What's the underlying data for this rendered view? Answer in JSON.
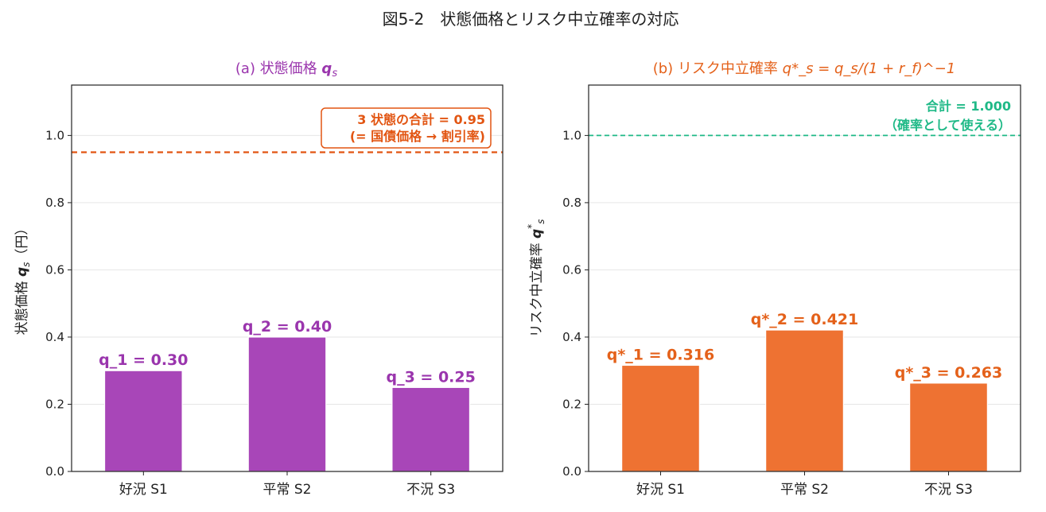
{
  "figure_title": "図5-2　状態価格とリスク中立確率の対応",
  "colors": {
    "purple": "#a846b8",
    "purple_text": "#9a35ad",
    "orange": "#ee7232",
    "orange_text": "#e4611a",
    "ref_orange": "#e25512",
    "green": "#1fb987"
  },
  "chart_data": [
    {
      "type": "bar",
      "title_prefix": "(a) 状態価格",
      "title_math": "q",
      "title_math_sub": "s",
      "ylabel_prefix": "状態価格",
      "ylabel_math": "q",
      "ylabel_math_sub": "s",
      "ylabel_suffix": "（円）",
      "categories": [
        "好況 S1",
        "平常 S2",
        "不況 S3"
      ],
      "values": [
        0.3,
        0.4,
        0.25
      ],
      "data_labels": [
        "q_1 = 0.30",
        "q_2 = 0.40",
        "q_3 = 0.25"
      ],
      "ylim": [
        0,
        1.15
      ],
      "yticks": [
        "0.0",
        "0.2",
        "0.4",
        "0.6",
        "0.8",
        "1.0"
      ],
      "grid": true,
      "reference_line": {
        "value": 0.95,
        "style": "dashed",
        "annotation": [
          "3 状態の合計 = 0.95",
          "(= 国債価格 → 割引率)"
        ]
      }
    },
    {
      "type": "bar",
      "title_prefix": "(b) リスク中立確率",
      "title_formula": "q*_s = q_s/(1 + r_f)^−1",
      "ylabel_prefix": "リスク中立確率",
      "ylabel_math": "q",
      "ylabel_math_sup": "*",
      "ylabel_math_sub": "s",
      "categories": [
        "好況 S1",
        "平常 S2",
        "不況 S3"
      ],
      "values": [
        0.316,
        0.421,
        0.263
      ],
      "data_labels": [
        "q*_1 = 0.316",
        "q*_2 = 0.421",
        "q*_3 = 0.263"
      ],
      "ylim": [
        0,
        1.15
      ],
      "yticks": [
        "0.0",
        "0.2",
        "0.4",
        "0.6",
        "0.8",
        "1.0"
      ],
      "grid": true,
      "reference_line": {
        "value": 1.0,
        "style": "dashed",
        "annotation": [
          "合計 = 1.000",
          "（確率として使える）"
        ]
      }
    }
  ]
}
